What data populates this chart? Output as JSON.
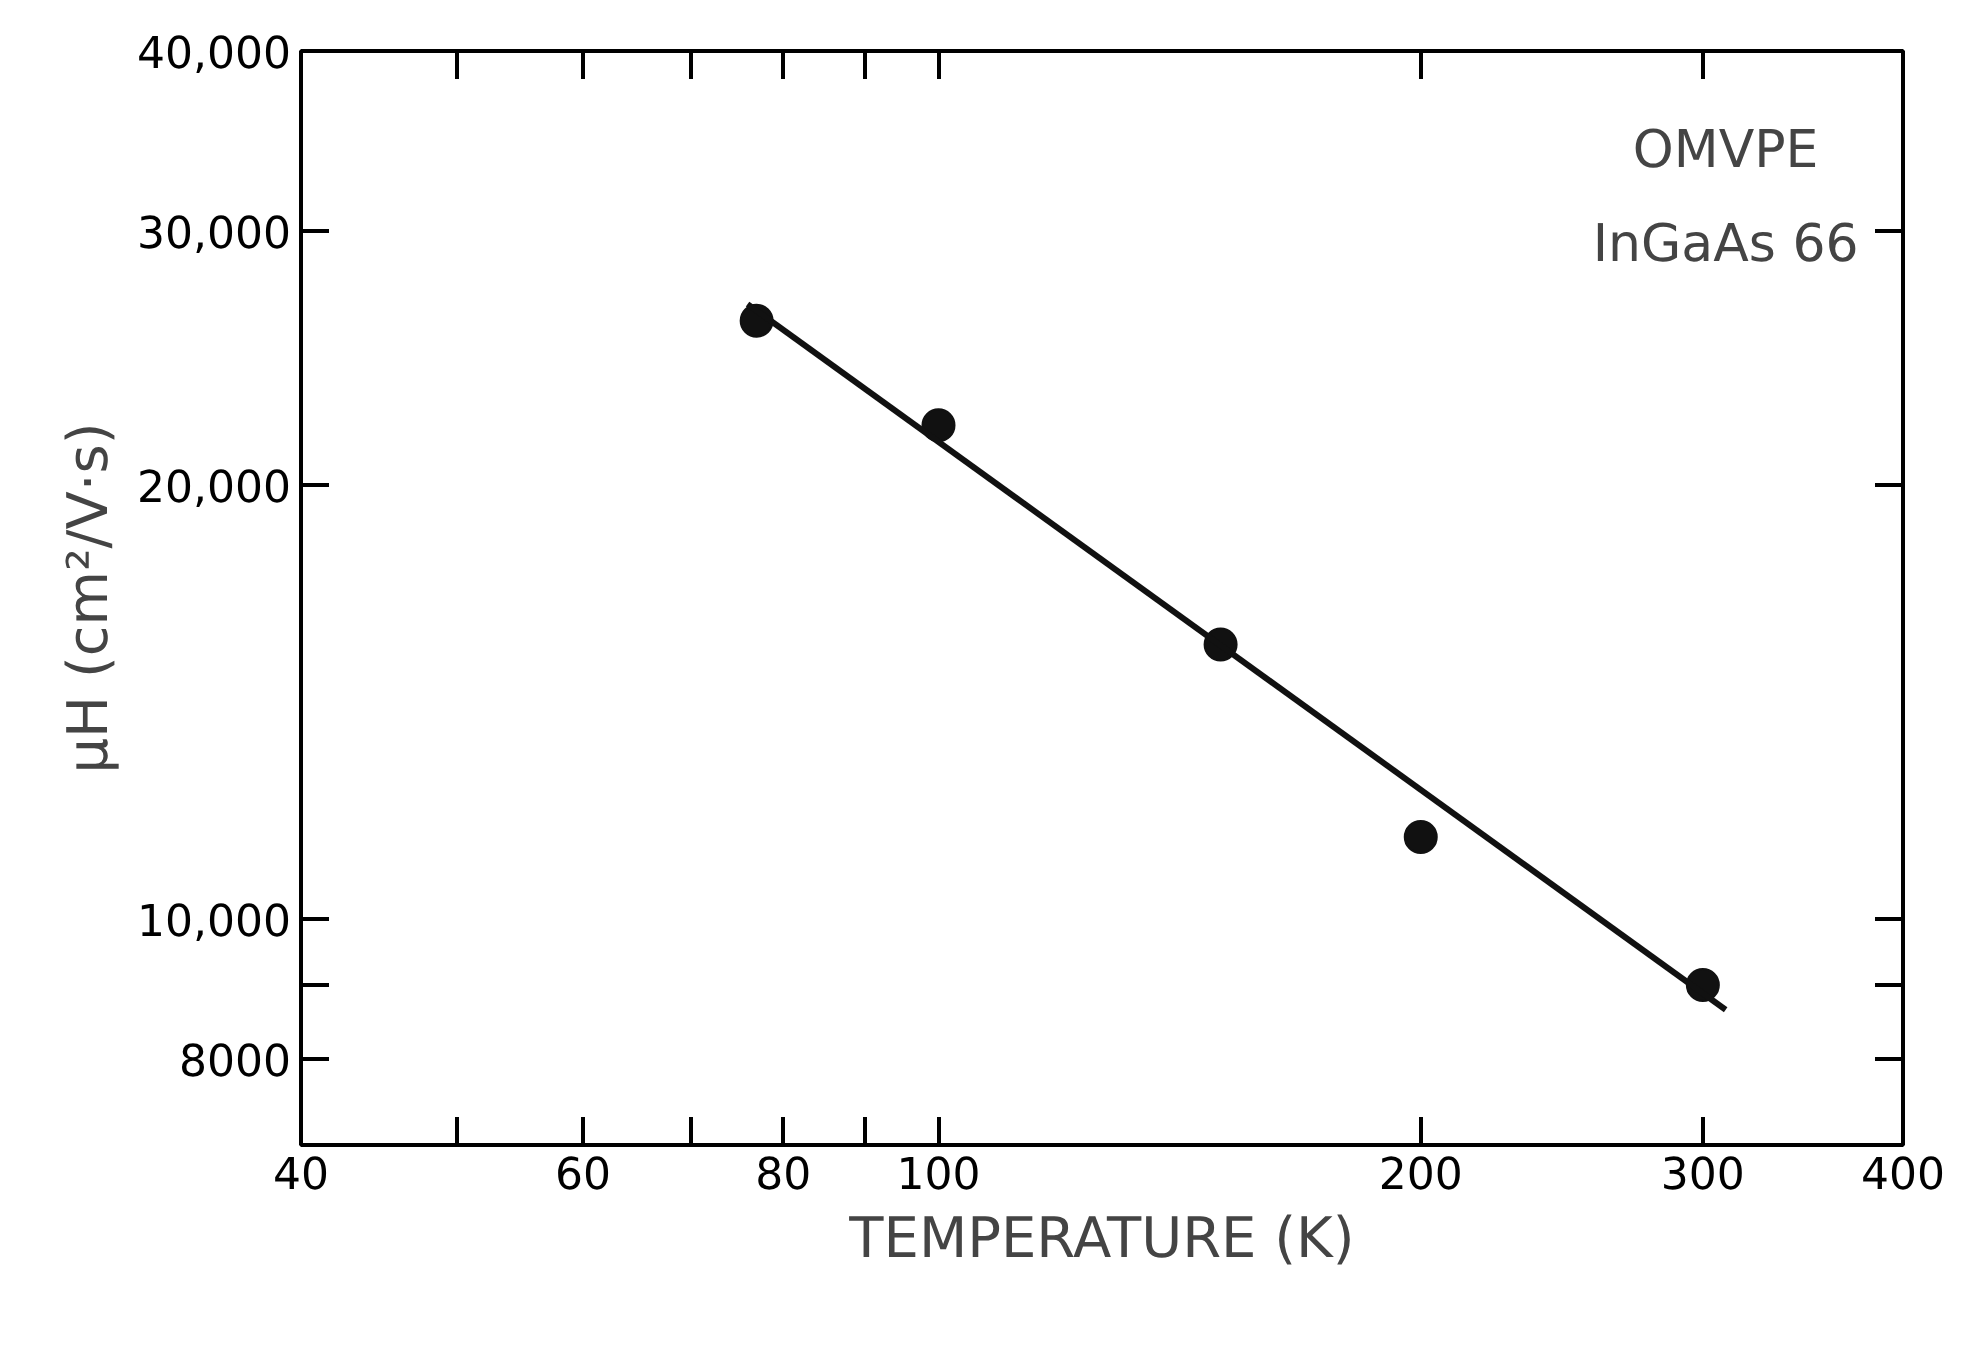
{
  "chart_data": {
    "type": "scatter",
    "xlabel": "TEMPERATURE (K)",
    "ylabel": "μH (cm²/V·s)",
    "log": "xy",
    "grid": false,
    "marker": "circle",
    "xlim": [
      40,
      400
    ],
    "ylim": [
      6970,
      40000
    ],
    "xticks": [
      40,
      {
        "value": 50,
        "label": null
      },
      60,
      {
        "value": 70,
        "label": null
      },
      80,
      {
        "value": 90,
        "label": null
      },
      100,
      200,
      300,
      400
    ],
    "yticks": [
      {
        "value": 8000,
        "label": "8000"
      },
      {
        "value": 9000,
        "label": null
      },
      {
        "value": 10000,
        "label": "10,000"
      },
      {
        "value": 20000,
        "label": "20,000"
      },
      {
        "value": 30000,
        "label": "30,000"
      },
      {
        "value": 40000,
        "label": "40,000"
      }
    ],
    "annotations": [
      "OMVPE",
      "InGaAs 66"
    ],
    "series": [
      {
        "color": "#111111",
        "x": [
          77,
          100,
          150,
          200,
          300
        ],
        "values": [
          26000,
          22000,
          15500,
          11400,
          9000
        ]
      },
      {
        "type": "line",
        "color": "#111111",
        "marker": "none",
        "x": [
          76,
          310
        ],
        "values": [
          26700,
          8650
        ]
      }
    ]
  }
}
